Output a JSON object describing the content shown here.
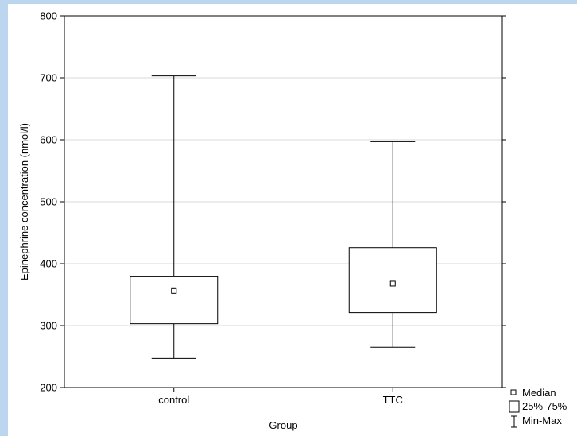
{
  "chart_data": {
    "type": "box",
    "xlabel": "Group",
    "ylabel": "Epinephrine concentration (nmol/l)",
    "ylim": [
      200,
      800
    ],
    "yticks": [
      200,
      300,
      400,
      500,
      600,
      700,
      800
    ],
    "grid": true,
    "legend_position": "bottom-right",
    "legend": [
      {
        "symbol": "median-marker",
        "label": "Median"
      },
      {
        "symbol": "box-symbol",
        "label": "25%-75%"
      },
      {
        "symbol": "whisker-symbol",
        "label": "Min-Max"
      }
    ],
    "categories": [
      "control",
      "TTC"
    ],
    "boxes": [
      {
        "category": "control",
        "min": 247,
        "q1": 303,
        "median": 356,
        "q3": 379,
        "max": 703
      },
      {
        "category": "TTC",
        "min": 265,
        "q1": 321,
        "median": 368,
        "q3": 426,
        "max": 597
      }
    ]
  }
}
